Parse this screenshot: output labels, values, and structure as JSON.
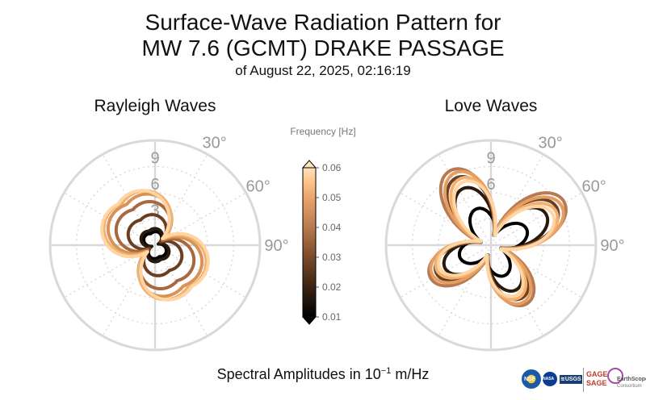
{
  "title": {
    "line1": "Surface-Wave Radiation Pattern for",
    "line2": "MW 7.6 (GCMT) DRAKE PASSAGE",
    "line3": "of August 22, 2025, 02:16:19"
  },
  "footer": {
    "text": "Spectral Amplitudes in ",
    "unit_base": "10",
    "unit_exp": "−1",
    "unit_tail": " m/Hz"
  },
  "logos": {
    "nsf": "NSF",
    "nasa": "NASA",
    "usgs": "≋USGS",
    "gage": "GAGE",
    "sage": "SAGE",
    "earthscope": "EarthScope",
    "consortium": "Consortium"
  },
  "colors": {
    "grid": "#d9d9d9",
    "tick_text": "#9a9a9a",
    "cmap": [
      "#000000",
      "#3b2414",
      "#7a4a2a",
      "#b87a50",
      "#eaa56a",
      "#ffc98d",
      "#ffe3c0"
    ]
  },
  "chart_data": [
    {
      "type": "polar",
      "title": "Rayleigh Waves",
      "r_ticks": [
        "3",
        "6",
        "9"
      ],
      "r_max": 12,
      "theta_ticks": [
        "30°",
        "60°",
        "90°"
      ],
      "theta_zero": "N",
      "theta_direction": "clockwise",
      "series": [
        {
          "frequency": 0.01,
          "shape": "rayleigh",
          "a": 1.0,
          "b": 0.9,
          "rot": 160,
          "color": "#000000"
        },
        {
          "frequency": 0.02,
          "shape": "rayleigh",
          "a": 1.3,
          "b": 1.0,
          "rot": 157,
          "color": "#2a1a0e"
        },
        {
          "frequency": 0.03,
          "shape": "rayleigh",
          "a": 2.6,
          "b": 1.6,
          "rot": 150,
          "color": "#6b3f22"
        },
        {
          "frequency": 0.04,
          "shape": "rayleigh",
          "a": 3.8,
          "b": 2.2,
          "rot": 148,
          "color": "#a8693f"
        },
        {
          "frequency": 0.05,
          "shape": "rayleigh",
          "a": 4.5,
          "b": 2.6,
          "rot": 145,
          "color": "#d99255"
        },
        {
          "frequency": 0.055,
          "shape": "rayleigh",
          "a": 4.9,
          "b": 2.7,
          "rot": 142,
          "color": "#f4b06e"
        },
        {
          "frequency": 0.06,
          "shape": "rayleigh",
          "a": 5.2,
          "b": 2.5,
          "rot": 138,
          "color": "#ffd6a3"
        }
      ]
    },
    {
      "type": "polar",
      "title": "Love Waves",
      "r_ticks": [
        "3",
        "6",
        "9"
      ],
      "r_max": 12,
      "theta_ticks": [
        "30°",
        "60°",
        "90°"
      ],
      "theta_zero": "N",
      "theta_direction": "clockwise",
      "series": [
        {
          "frequency": 0.01,
          "shape": "love",
          "amp": 3.1,
          "base": 1.5,
          "rot": 22,
          "color": "#000000"
        },
        {
          "frequency": 0.02,
          "shape": "love",
          "amp": 6.4,
          "base": 1.1,
          "rot": 17,
          "color": "#2a1a0e"
        },
        {
          "frequency": 0.03,
          "shape": "love",
          "amp": 7.8,
          "base": 1.2,
          "rot": 16,
          "color": "#6b3f22"
        },
        {
          "frequency": 0.04,
          "shape": "love",
          "amp": 8.8,
          "base": 1.3,
          "rot": 15,
          "color": "#b87a50"
        },
        {
          "frequency": 0.05,
          "shape": "love",
          "amp": 8.2,
          "base": 1.4,
          "rot": 17,
          "color": "#e59e61"
        },
        {
          "frequency": 0.055,
          "shape": "love",
          "amp": 7.4,
          "base": 1.3,
          "rot": 19,
          "color": "#f4b06e"
        },
        {
          "frequency": 0.06,
          "shape": "love",
          "amp": 7.0,
          "base": 1.2,
          "rot": 20,
          "color": "#ffd6a3"
        }
      ]
    }
  ],
  "colorbar": {
    "label": "Frequency [Hz]",
    "min": 0.01,
    "max": 0.06,
    "ticks": [
      "0.01",
      "0.02",
      "0.03",
      "0.04",
      "0.05",
      "0.06"
    ]
  }
}
